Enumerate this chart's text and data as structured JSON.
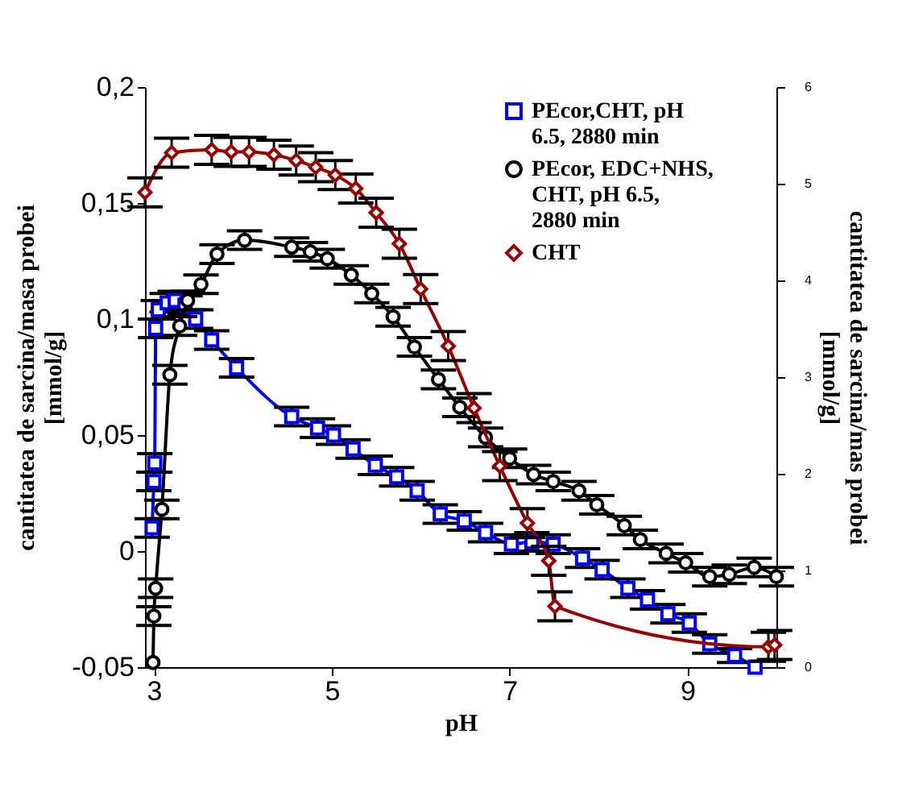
{
  "chart_data": {
    "type": "line",
    "xlabel": "pH",
    "ylabel": "cantitatea de sarcina/masa probei [mmol/g]",
    "y2label": "cantitatea de sarcina/mas probei [mmol/g]",
    "xlim": [
      2.9,
      10
    ],
    "xticks": [
      3,
      5,
      7,
      9
    ],
    "ylim": [
      -0.05,
      0.2
    ],
    "yticks": [
      {
        "value": -0.05,
        "label": "-0,05"
      },
      0,
      {
        "value": 0.05,
        "label": "0,05"
      },
      {
        "value": 0.1,
        "label": "0,1"
      },
      {
        "value": 0.15,
        "label": "0,15"
      },
      {
        "value": 0.2,
        "label": "0,2"
      }
    ],
    "y2lim": [
      0,
      6
    ],
    "y2ticks": [
      0,
      1,
      2,
      3,
      4,
      5,
      6
    ],
    "grid": false,
    "legend": "top right",
    "line_style": "solid",
    "series": [
      {
        "name": "PEcor,CHT, pH 6.5, 2880 min",
        "color": "#0000ff",
        "marker": "square",
        "x": [
          2.98,
          3.0,
          3.01,
          3.02,
          3.05,
          3.15,
          3.24,
          3.35,
          3.47,
          3.65,
          3.93,
          4.55,
          4.84,
          5.02,
          5.24,
          5.49,
          5.73,
          5.96,
          6.22,
          6.49,
          6.73,
          7.02,
          7.25,
          7.49,
          7.82,
          8.04,
          8.33,
          8.55,
          8.78,
          9.02,
          9.25,
          9.53,
          9.76
        ],
        "values": [
          0.01,
          0.03,
          0.038,
          0.096,
          0.104,
          0.107,
          0.108,
          0.106,
          0.1,
          0.091,
          0.079,
          0.058,
          0.053,
          0.05,
          0.044,
          0.037,
          0.032,
          0.026,
          0.016,
          0.013,
          0.008,
          0.003,
          0.004,
          0.003,
          -0.003,
          -0.008,
          -0.016,
          -0.021,
          -0.027,
          -0.031,
          -0.04,
          -0.045,
          -0.05
        ],
        "errors": [
          0.004,
          0.004,
          0.004,
          0.004,
          0.004,
          0.004,
          0.004,
          0.004,
          0.004,
          0.004,
          0.004,
          0.004,
          0.004,
          0.004,
          0.004,
          0.004,
          0.004,
          0.004,
          0.004,
          0.004,
          0.004,
          0.004,
          0.004,
          0.004,
          0.004,
          0.004,
          0.004,
          0.004,
          0.004,
          0.004,
          0.004,
          0.003,
          null
        ]
      },
      {
        "name": "PEcor, EDC+NHS, CHT, pH 6.5, 2880 min",
        "color": "#000000",
        "marker": "circle",
        "x": [
          2.99,
          3.0,
          3.02,
          3.09,
          3.18,
          3.29,
          3.38,
          3.53,
          3.71,
          4.02,
          4.55,
          4.76,
          4.95,
          5.22,
          5.45,
          5.69,
          5.93,
          6.2,
          6.44,
          6.73,
          7.0,
          7.27,
          7.49,
          7.78,
          7.98,
          8.29,
          8.47,
          8.76,
          8.98,
          9.25,
          9.47,
          9.75,
          10.0
        ],
        "values": [
          -0.048,
          -0.028,
          -0.016,
          0.018,
          0.076,
          0.097,
          0.108,
          0.115,
          0.128,
          0.134,
          0.131,
          0.129,
          0.126,
          0.119,
          0.111,
          0.101,
          0.088,
          0.074,
          0.062,
          0.049,
          0.04,
          0.033,
          0.03,
          0.026,
          0.02,
          0.011,
          0.005,
          -0.001,
          -0.005,
          -0.011,
          -0.01,
          -0.007,
          -0.011
        ],
        "errors": [
          null,
          0.004,
          0.004,
          0.004,
          0.004,
          0.004,
          0.004,
          0.004,
          0.004,
          0.004,
          0.004,
          0.004,
          0.004,
          0.004,
          0.004,
          0.004,
          0.004,
          0.004,
          0.004,
          0.004,
          0.004,
          0.004,
          0.004,
          0.004,
          0.004,
          0.004,
          0.004,
          0.004,
          0.004,
          0.004,
          0.004,
          0.004,
          0.004
        ]
      },
      {
        "name": "CHT",
        "color": "#990000",
        "marker": "diamond",
        "axis": "y2",
        "x": [
          2.9,
          3.2,
          3.65,
          3.87,
          4.07,
          4.35,
          4.6,
          4.82,
          5.04,
          5.27,
          5.5,
          5.76,
          6.0,
          6.31,
          6.6,
          6.89,
          7.2,
          7.44,
          7.51,
          9.91,
          9.98
        ],
        "values": [
          4.91,
          5.32,
          5.35,
          5.33,
          5.33,
          5.3,
          5.24,
          5.17,
          5.09,
          4.95,
          4.7,
          4.38,
          3.91,
          3.32,
          2.68,
          2.08,
          1.49,
          1.1,
          0.63,
          0.21,
          0.23
        ],
        "errors": [
          0.15,
          0.15,
          0.15,
          0.15,
          0.15,
          0.15,
          0.15,
          0.15,
          0.15,
          0.15,
          0.15,
          0.15,
          0.15,
          0.15,
          0.15,
          0.15,
          0.15,
          0.15,
          0.15,
          0.15,
          0.15
        ]
      }
    ]
  }
}
